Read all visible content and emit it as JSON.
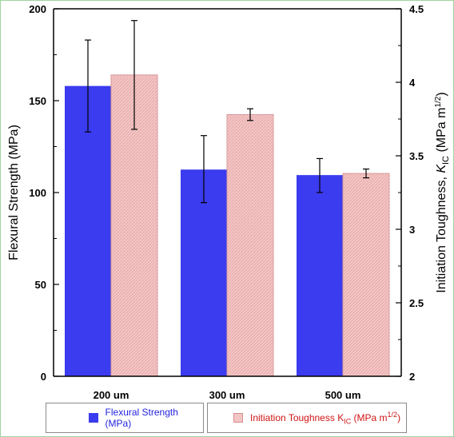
{
  "chart_data": {
    "type": "bar",
    "categories": [
      "200 um",
      "300 um",
      "500 um"
    ],
    "series": [
      {
        "name": "Flexural Strength (MPa)",
        "axis": "left",
        "color": "#3b3bef",
        "values": [
          158,
          112.5,
          109.5
        ],
        "error_low": [
          133,
          94.5,
          100
        ],
        "error_high": [
          183,
          131,
          118.5
        ]
      },
      {
        "name": "Initiation Toughness K_IC (MPa m^1/2)",
        "axis": "right",
        "color": "#f3c6c6",
        "values": [
          4.05,
          3.78,
          3.38
        ],
        "error_low": [
          3.68,
          3.74,
          3.35
        ],
        "error_high": [
          4.42,
          3.82,
          3.41
        ]
      }
    ],
    "ylabel_left": "Flexural Strength (MPa)",
    "ylabel_right_prefix": "Initiation Toughness, ",
    "ylabel_right_symbol": "K",
    "ylabel_right_sub": "IC",
    "ylabel_right_suffix": " (MPa m",
    "ylabel_right_sup": "1/2",
    "ylabel_right_close": ")",
    "ylim_left": [
      0,
      200
    ],
    "ylim_right": [
      2,
      4.5
    ],
    "yticks_left": [
      0,
      50,
      100,
      150,
      200
    ],
    "yticks_right": [
      2,
      2.5,
      3,
      3.5,
      4,
      4.5
    ],
    "yticks_right_labels": [
      "2",
      "2.5",
      "3",
      "3.5",
      "4",
      "4.5"
    ],
    "grid": false,
    "legend_position": "bottom"
  },
  "legend": {
    "item1_label": "Flexural Strength (MPa)",
    "item2_label_prefix": "Initiation Toughness K",
    "item2_label_sub": "IC",
    "item2_label_mid": " (MPa m",
    "item2_label_sup": "1/2",
    "item2_label_close": ")"
  }
}
